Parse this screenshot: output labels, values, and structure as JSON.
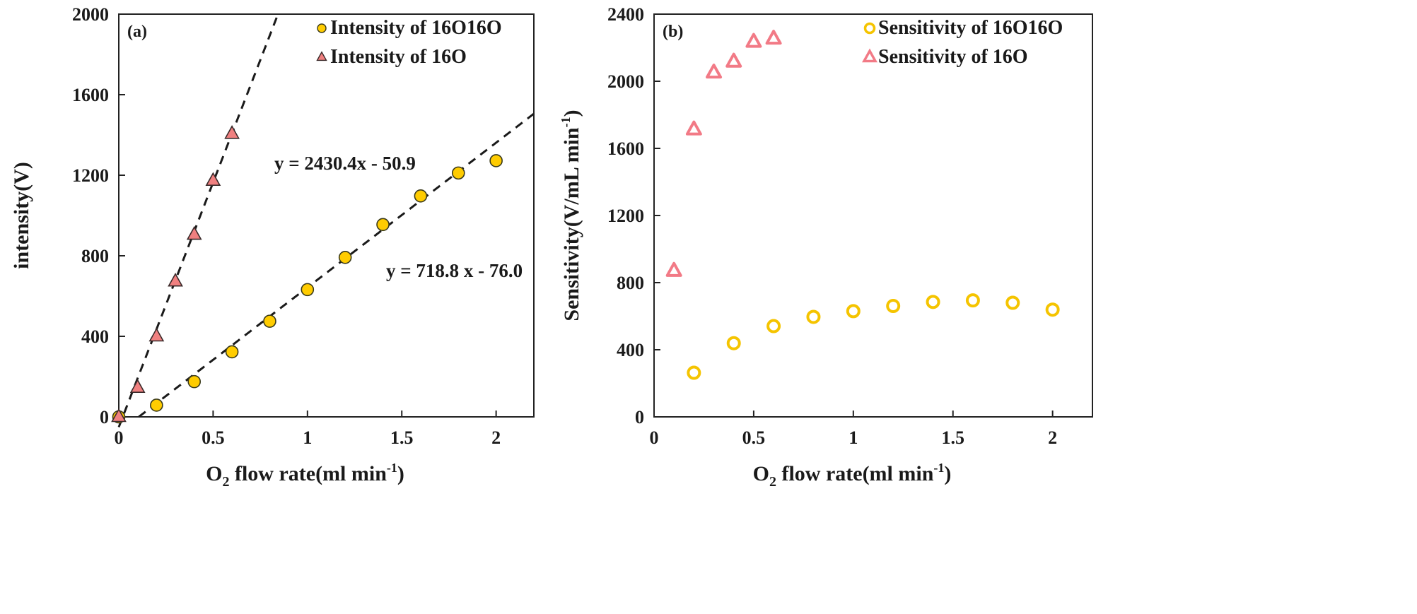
{
  "chart_data": [
    {
      "type": "scatter",
      "panel_label": "(a)",
      "title": "",
      "xlabel": "O2 flow rate(ml min-1)",
      "xlabel_parts": {
        "prefix": "O",
        "sub": "2",
        "middle": " flow rate(ml min",
        "sup": "-1",
        "suffix": ")"
      },
      "ylabel": "intensity(V)",
      "xlim": [
        0,
        2.2
      ],
      "ylim": [
        0,
        2000
      ],
      "xticks": [
        0,
        0.5,
        1,
        1.5,
        2
      ],
      "xtick_labels": [
        "0",
        "0.5",
        "1",
        "1.5",
        "2"
      ],
      "yticks": [
        0,
        400,
        800,
        1200,
        1600,
        2000
      ],
      "ytick_labels": [
        "0",
        "400",
        "800",
        "1200",
        "1600",
        "2000"
      ],
      "grid": false,
      "legend_position": "top-right",
      "series": [
        {
          "name": "Intensity of 16O16O",
          "marker": "circle-filled",
          "color": "#FFCC00",
          "x": [
            0,
            0.2,
            0.4,
            0.6,
            0.8,
            1.0,
            1.2,
            1.4,
            1.6,
            1.8,
            2.0
          ],
          "y": [
            0,
            58,
            175,
            323,
            475,
            632,
            792,
            955,
            1097,
            1211,
            1272
          ]
        },
        {
          "name": "Intensity of 16O",
          "marker": "triangle-filled",
          "color": "#F08080",
          "x": [
            0,
            0.1,
            0.2,
            0.3,
            0.4,
            0.5,
            0.6
          ],
          "y": [
            0,
            145,
            400,
            673,
            905,
            1173,
            1406
          ]
        }
      ],
      "fits": [
        {
          "label": "y = 2430.4x - 50.9",
          "slope": 2430.4,
          "intercept": -50.9,
          "x_range": [
            0,
            0.844
          ],
          "style": "dashed",
          "color": "#1a1a1a"
        },
        {
          "label": "y = 718.8 x - 76.0",
          "slope": 718.8,
          "intercept": -76.0,
          "x_range": [
            0.106,
            2.2
          ],
          "style": "dashed",
          "color": "#1a1a1a"
        }
      ]
    },
    {
      "type": "scatter",
      "panel_label": "(b)",
      "title": "",
      "xlabel": "O2 flow rate(ml min-1)",
      "xlabel_parts": {
        "prefix": "O",
        "sub": "2",
        "middle": " flow rate(ml min",
        "sup": "-1",
        "suffix": ")"
      },
      "ylabel": "Sensitivity(V/mL min-1)",
      "ylabel_parts": {
        "main": "Sensitivity(V/mL  min",
        "sup": "-1",
        "suffix": ")"
      },
      "xlim": [
        0,
        2.2
      ],
      "ylim": [
        0,
        2400
      ],
      "xticks": [
        0,
        0.5,
        1,
        1.5,
        2
      ],
      "xtick_labels": [
        "0",
        "0.5",
        "1",
        "1.5",
        "2"
      ],
      "yticks": [
        0,
        400,
        800,
        1200,
        1600,
        2000,
        2400
      ],
      "ytick_labels": [
        "0",
        "400",
        "800",
        "1200",
        "1600",
        "2000",
        "2400"
      ],
      "grid": false,
      "legend_position": "top-right",
      "series": [
        {
          "name": "Sensitivity of 16O16O",
          "marker": "circle-hollow",
          "color": "#F5C400",
          "x": [
            0.2,
            0.4,
            0.6,
            0.8,
            1.0,
            1.2,
            1.4,
            1.6,
            1.8,
            2.0
          ],
          "y": [
            263,
            439,
            541,
            596,
            630,
            661,
            685,
            694,
            680,
            639
          ]
        },
        {
          "name": "Sensitivity of 16O",
          "marker": "triangle-hollow",
          "color": "#F27A86",
          "x": [
            0.1,
            0.2,
            0.3,
            0.4,
            0.5,
            0.6
          ],
          "y": [
            870,
            1713,
            2052,
            2117,
            2235,
            2254
          ]
        }
      ]
    }
  ]
}
